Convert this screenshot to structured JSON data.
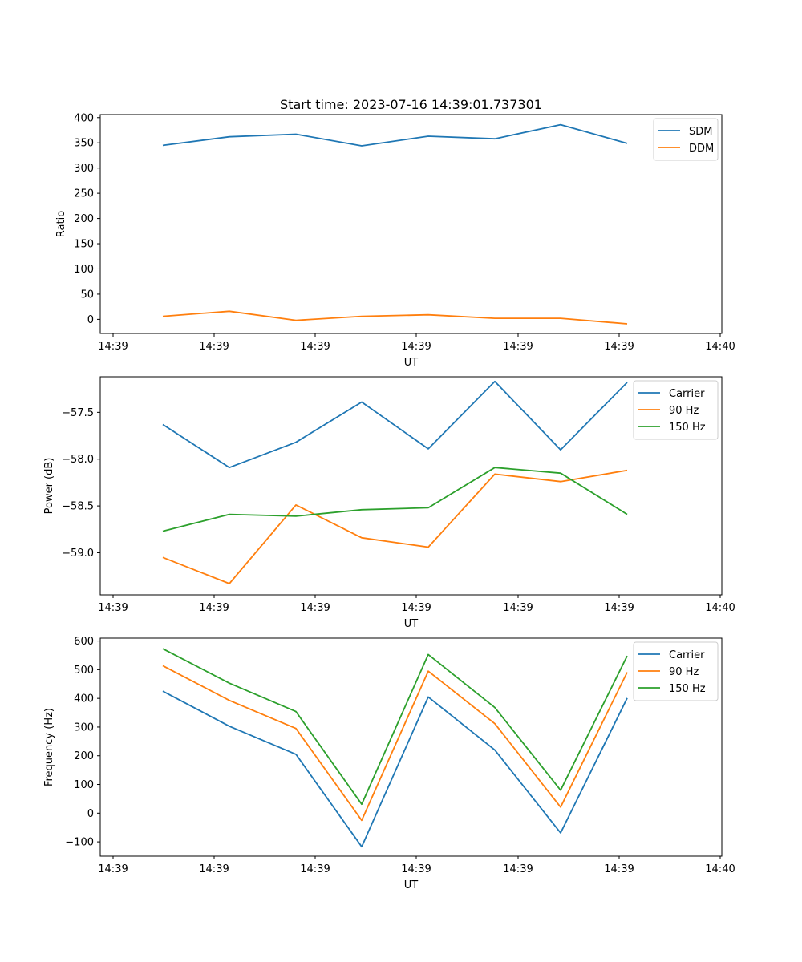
{
  "chart_data": [
    {
      "type": "line",
      "title": "Start time: 2023-07-16 14:39:01.737301",
      "xlabel": "UT",
      "ylabel": "Ratio",
      "xticks": [
        "14:39",
        "14:39",
        "14:39",
        "14:39",
        "14:39",
        "14:39",
        "14:40"
      ],
      "ylim": [
        -28,
        406
      ],
      "yticks": [
        0,
        50,
        100,
        150,
        200,
        250,
        300,
        350,
        400
      ],
      "legend": "top-right",
      "series": [
        {
          "name": "SDM",
          "color": "#1f77b4",
          "values": [
            345,
            362,
            367,
            344,
            363,
            358,
            386,
            349
          ]
        },
        {
          "name": "DDM",
          "color": "#ff7f0e",
          "values": [
            6,
            16,
            -2,
            6,
            9,
            2,
            2,
            -9
          ]
        }
      ]
    },
    {
      "type": "line",
      "title": "",
      "xlabel": "UT",
      "ylabel": "Power (dB)",
      "xticks": [
        "14:39",
        "14:39",
        "14:39",
        "14:39",
        "14:39",
        "14:39",
        "14:40"
      ],
      "ylim": [
        -59.45,
        -57.12
      ],
      "yticks": [
        -57.5,
        -58.0,
        -58.5,
        -59.0
      ],
      "ytick_labels": [
        "−57.5",
        "−58.0",
        "−58.5",
        "−59.0"
      ],
      "legend": "top-right",
      "series": [
        {
          "name": "Carrier",
          "color": "#1f77b4",
          "values": [
            -57.63,
            -58.09,
            -57.82,
            -57.39,
            -57.89,
            -57.17,
            -57.9,
            -57.18
          ]
        },
        {
          "name": "90 Hz",
          "color": "#ff7f0e",
          "values": [
            -59.05,
            -59.33,
            -58.49,
            -58.84,
            -58.94,
            -58.16,
            -58.24,
            -58.12
          ]
        },
        {
          "name": "150 Hz",
          "color": "#2ca02c",
          "values": [
            -58.77,
            -58.59,
            -58.61,
            -58.54,
            -58.52,
            -58.09,
            -58.15,
            -58.59
          ]
        }
      ]
    },
    {
      "type": "line",
      "title": "",
      "xlabel": "UT",
      "ylabel": "Frequency (Hz)",
      "xticks": [
        "14:39",
        "14:39",
        "14:39",
        "14:39",
        "14:39",
        "14:39",
        "14:40"
      ],
      "ylim": [
        -150,
        610
      ],
      "yticks": [
        -100,
        0,
        100,
        200,
        300,
        400,
        500,
        600
      ],
      "ytick_labels": [
        "−100",
        "0",
        "100",
        "200",
        "300",
        "400",
        "500",
        "600"
      ],
      "legend": "top-right",
      "series": [
        {
          "name": "Carrier",
          "color": "#1f77b4",
          "values": [
            425,
            303,
            205,
            -117,
            405,
            220,
            -69,
            401
          ]
        },
        {
          "name": "90 Hz",
          "color": "#ff7f0e",
          "values": [
            514,
            393,
            295,
            -25,
            495,
            312,
            21,
            491
          ]
        },
        {
          "name": "150 Hz",
          "color": "#2ca02c",
          "values": [
            573,
            453,
            354,
            31,
            553,
            368,
            80,
            548
          ]
        }
      ]
    }
  ]
}
